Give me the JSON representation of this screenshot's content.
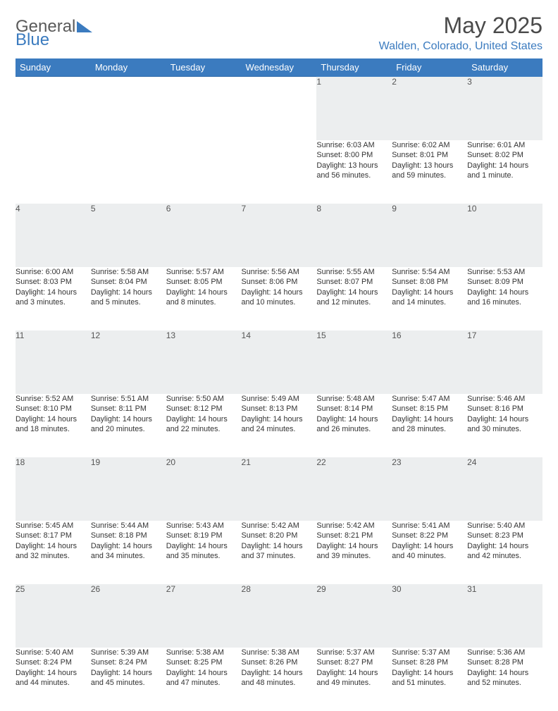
{
  "logo": {
    "text1": "General",
    "text2": "Blue"
  },
  "title": "May 2025",
  "location": "Walden, Colorado, United States",
  "colors": {
    "accent": "#3b7bbf",
    "header_text": "#ffffff",
    "daynum_bg": "#eceeef",
    "rule": "#2f6aa8",
    "body_text": "#333333",
    "logo_gray": "#5a5a5a"
  },
  "day_headers": [
    "Sunday",
    "Monday",
    "Tuesday",
    "Wednesday",
    "Thursday",
    "Friday",
    "Saturday"
  ],
  "weeks": [
    [
      null,
      null,
      null,
      null,
      {
        "n": "1",
        "sr": "6:03 AM",
        "ss": "8:00 PM",
        "dl": "13 hours and 56 minutes."
      },
      {
        "n": "2",
        "sr": "6:02 AM",
        "ss": "8:01 PM",
        "dl": "13 hours and 59 minutes."
      },
      {
        "n": "3",
        "sr": "6:01 AM",
        "ss": "8:02 PM",
        "dl": "14 hours and 1 minute."
      }
    ],
    [
      {
        "n": "4",
        "sr": "6:00 AM",
        "ss": "8:03 PM",
        "dl": "14 hours and 3 minutes."
      },
      {
        "n": "5",
        "sr": "5:58 AM",
        "ss": "8:04 PM",
        "dl": "14 hours and 5 minutes."
      },
      {
        "n": "6",
        "sr": "5:57 AM",
        "ss": "8:05 PM",
        "dl": "14 hours and 8 minutes."
      },
      {
        "n": "7",
        "sr": "5:56 AM",
        "ss": "8:06 PM",
        "dl": "14 hours and 10 minutes."
      },
      {
        "n": "8",
        "sr": "5:55 AM",
        "ss": "8:07 PM",
        "dl": "14 hours and 12 minutes."
      },
      {
        "n": "9",
        "sr": "5:54 AM",
        "ss": "8:08 PM",
        "dl": "14 hours and 14 minutes."
      },
      {
        "n": "10",
        "sr": "5:53 AM",
        "ss": "8:09 PM",
        "dl": "14 hours and 16 minutes."
      }
    ],
    [
      {
        "n": "11",
        "sr": "5:52 AM",
        "ss": "8:10 PM",
        "dl": "14 hours and 18 minutes."
      },
      {
        "n": "12",
        "sr": "5:51 AM",
        "ss": "8:11 PM",
        "dl": "14 hours and 20 minutes."
      },
      {
        "n": "13",
        "sr": "5:50 AM",
        "ss": "8:12 PM",
        "dl": "14 hours and 22 minutes."
      },
      {
        "n": "14",
        "sr": "5:49 AM",
        "ss": "8:13 PM",
        "dl": "14 hours and 24 minutes."
      },
      {
        "n": "15",
        "sr": "5:48 AM",
        "ss": "8:14 PM",
        "dl": "14 hours and 26 minutes."
      },
      {
        "n": "16",
        "sr": "5:47 AM",
        "ss": "8:15 PM",
        "dl": "14 hours and 28 minutes."
      },
      {
        "n": "17",
        "sr": "5:46 AM",
        "ss": "8:16 PM",
        "dl": "14 hours and 30 minutes."
      }
    ],
    [
      {
        "n": "18",
        "sr": "5:45 AM",
        "ss": "8:17 PM",
        "dl": "14 hours and 32 minutes."
      },
      {
        "n": "19",
        "sr": "5:44 AM",
        "ss": "8:18 PM",
        "dl": "14 hours and 34 minutes."
      },
      {
        "n": "20",
        "sr": "5:43 AM",
        "ss": "8:19 PM",
        "dl": "14 hours and 35 minutes."
      },
      {
        "n": "21",
        "sr": "5:42 AM",
        "ss": "8:20 PM",
        "dl": "14 hours and 37 minutes."
      },
      {
        "n": "22",
        "sr": "5:42 AM",
        "ss": "8:21 PM",
        "dl": "14 hours and 39 minutes."
      },
      {
        "n": "23",
        "sr": "5:41 AM",
        "ss": "8:22 PM",
        "dl": "14 hours and 40 minutes."
      },
      {
        "n": "24",
        "sr": "5:40 AM",
        "ss": "8:23 PM",
        "dl": "14 hours and 42 minutes."
      }
    ],
    [
      {
        "n": "25",
        "sr": "5:40 AM",
        "ss": "8:24 PM",
        "dl": "14 hours and 44 minutes."
      },
      {
        "n": "26",
        "sr": "5:39 AM",
        "ss": "8:24 PM",
        "dl": "14 hours and 45 minutes."
      },
      {
        "n": "27",
        "sr": "5:38 AM",
        "ss": "8:25 PM",
        "dl": "14 hours and 47 minutes."
      },
      {
        "n": "28",
        "sr": "5:38 AM",
        "ss": "8:26 PM",
        "dl": "14 hours and 48 minutes."
      },
      {
        "n": "29",
        "sr": "5:37 AM",
        "ss": "8:27 PM",
        "dl": "14 hours and 49 minutes."
      },
      {
        "n": "30",
        "sr": "5:37 AM",
        "ss": "8:28 PM",
        "dl": "14 hours and 51 minutes."
      },
      {
        "n": "31",
        "sr": "5:36 AM",
        "ss": "8:28 PM",
        "dl": "14 hours and 52 minutes."
      }
    ]
  ],
  "labels": {
    "sunrise": "Sunrise: ",
    "sunset": "Sunset: ",
    "daylight": "Daylight: "
  }
}
